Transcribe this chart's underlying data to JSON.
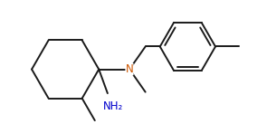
{
  "background": "#ffffff",
  "line_color": "#1a1a1a",
  "N_color": "#cc5500",
  "NH2_color": "#0000cc",
  "line_width": 1.4,
  "font_size_N": 8.5,
  "font_size_NH2": 8.5
}
